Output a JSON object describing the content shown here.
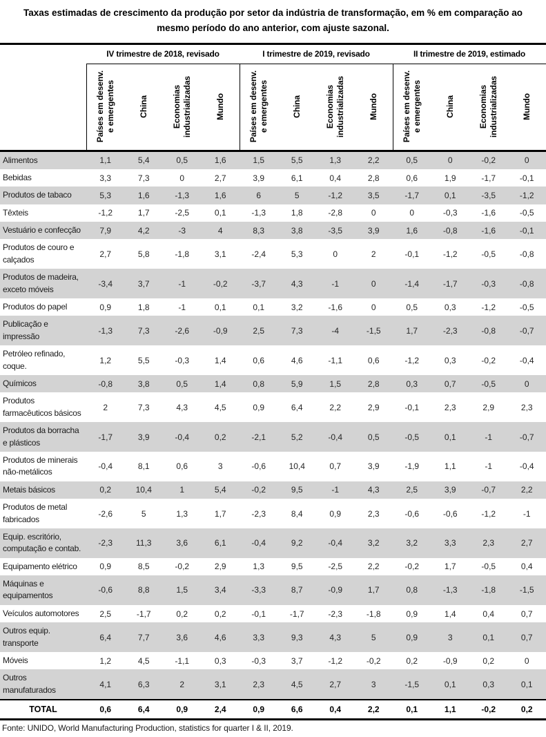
{
  "title": "Taxas estimadas de crescimento da produção por setor da indústria de transformação, em % em comparação ao mesmo período do ano anterior, com ajuste sazonal.",
  "footer": "Fonte: UNIDO, World Manufacturing Production, statistics for quarter I & II, 2019.",
  "colors": {
    "stripe_row": "#d3d3d3",
    "border": "#000000",
    "background": "#ffffff"
  },
  "chart_data": {
    "type": "table",
    "title": "Taxas estimadas de crescimento da produção por setor da indústria de transformação, em % em comparação ao mesmo período do ano anterior, com ajuste sazonal.",
    "groups": [
      {
        "label": "IV trimestre de 2018, revisado"
      },
      {
        "label": "I trimestre de 2019, revisado"
      },
      {
        "label": "II trimestre de 2019, estimado"
      }
    ],
    "subcolumns": [
      "Países em desenv.\ne emergentes",
      "China",
      "Economias\nindustrializadas",
      "Mundo"
    ],
    "rows": [
      {
        "label": "Alimentos",
        "values": [
          "1,1",
          "5,4",
          "0,5",
          "1,6",
          "1,5",
          "5,5",
          "1,3",
          "2,2",
          "0,5",
          "0",
          "-0,2",
          "0"
        ]
      },
      {
        "label": "Bebidas",
        "values": [
          "3,3",
          "7,3",
          "0",
          "2,7",
          "3,9",
          "6,1",
          "0,4",
          "2,8",
          "0,6",
          "1,9",
          "-1,7",
          "-0,1"
        ]
      },
      {
        "label": "Produtos de tabaco",
        "values": [
          "5,3",
          "1,6",
          "-1,3",
          "1,6",
          "6",
          "5",
          "-1,2",
          "3,5",
          "-1,7",
          "0,1",
          "-3,5",
          "-1,2"
        ]
      },
      {
        "label": "Têxteis",
        "values": [
          "-1,2",
          "1,7",
          "-2,5",
          "0,1",
          "-1,3",
          "1,8",
          "-2,8",
          "0",
          "0",
          "-0,3",
          "-1,6",
          "-0,5"
        ]
      },
      {
        "label": "Vestuário e confecção",
        "values": [
          "7,9",
          "4,2",
          "-3",
          "4",
          "8,3",
          "3,8",
          "-3,5",
          "3,9",
          "1,6",
          "-0,8",
          "-1,6",
          "-0,1"
        ]
      },
      {
        "label": "Produtos de couro e\ncalçados",
        "values": [
          "2,7",
          "5,8",
          "-1,8",
          "3,1",
          "-2,4",
          "5,3",
          "0",
          "2",
          "-0,1",
          "-1,2",
          "-0,5",
          "-0,8"
        ]
      },
      {
        "label": "Produtos de madeira,\nexceto móveis",
        "values": [
          "-3,4",
          "3,7",
          "-1",
          "-0,2",
          "-3,7",
          "4,3",
          "-1",
          "0",
          "-1,4",
          "-1,7",
          "-0,3",
          "-0,8"
        ]
      },
      {
        "label": "Produtos do papel",
        "values": [
          "0,9",
          "1,8",
          "-1",
          "0,1",
          "0,1",
          "3,2",
          "-1,6",
          "0",
          "0,5",
          "0,3",
          "-1,2",
          "-0,5"
        ]
      },
      {
        "label": "Publicação e\nimpressão",
        "values": [
          "-1,3",
          "7,3",
          "-2,6",
          "-0,9",
          "2,5",
          "7,3",
          "-4",
          "-1,5",
          "1,7",
          "-2,3",
          "-0,8",
          "-0,7"
        ]
      },
      {
        "label": "Petróleo refinado,\ncoque.",
        "values": [
          "1,2",
          "5,5",
          "-0,3",
          "1,4",
          "0,6",
          "4,6",
          "-1,1",
          "0,6",
          "-1,2",
          "0,3",
          "-0,2",
          "-0,4"
        ]
      },
      {
        "label": "Químicos",
        "values": [
          "-0,8",
          "3,8",
          "0,5",
          "1,4",
          "0,8",
          "5,9",
          "1,5",
          "2,8",
          "0,3",
          "0,7",
          "-0,5",
          "0"
        ]
      },
      {
        "label": "Produtos\nfarmacêuticos básicos",
        "values": [
          "2",
          "7,3",
          "4,3",
          "4,5",
          "0,9",
          "6,4",
          "2,2",
          "2,9",
          "-0,1",
          "2,3",
          "2,9",
          "2,3"
        ]
      },
      {
        "label": "Produtos da borracha\ne plásticos",
        "values": [
          "-1,7",
          "3,9",
          "-0,4",
          "0,2",
          "-2,1",
          "5,2",
          "-0,4",
          "0,5",
          "-0,5",
          "0,1",
          "-1",
          "-0,7"
        ]
      },
      {
        "label": "Produtos de minerais\nnão-metálicos",
        "values": [
          "-0,4",
          "8,1",
          "0,6",
          "3",
          "-0,6",
          "10,4",
          "0,7",
          "3,9",
          "-1,9",
          "1,1",
          "-1",
          "-0,4"
        ]
      },
      {
        "label": "Metais básicos",
        "values": [
          "0,2",
          "10,4",
          "1",
          "5,4",
          "-0,2",
          "9,5",
          "-1",
          "4,3",
          "2,5",
          "3,9",
          "-0,7",
          "2,2"
        ]
      },
      {
        "label": "Produtos de metal\nfabricados",
        "values": [
          "-2,6",
          "5",
          "1,3",
          "1,7",
          "-2,3",
          "8,4",
          "0,9",
          "2,3",
          "-0,6",
          "-0,6",
          "-1,2",
          "-1"
        ]
      },
      {
        "label": "Equip. escritório,\ncomputação e contab.",
        "values": [
          "-2,3",
          "11,3",
          "3,6",
          "6,1",
          "-0,4",
          "9,2",
          "-0,4",
          "3,2",
          "3,2",
          "3,3",
          "2,3",
          "2,7"
        ]
      },
      {
        "label": "Equipamento elétrico",
        "values": [
          "0,9",
          "8,5",
          "-0,2",
          "2,9",
          "1,3",
          "9,5",
          "-2,5",
          "2,2",
          "-0,2",
          "1,7",
          "-0,5",
          "0,4"
        ]
      },
      {
        "label": "Máquinas e\nequipamentos",
        "values": [
          "-0,6",
          "8,8",
          "1,5",
          "3,4",
          "-3,3",
          "8,7",
          "-0,9",
          "1,7",
          "0,8",
          "-1,3",
          "-1,8",
          "-1,5"
        ]
      },
      {
        "label": "Veículos automotores",
        "values": [
          "2,5",
          "-1,7",
          "0,2",
          "0,2",
          "-0,1",
          "-1,7",
          "-2,3",
          "-1,8",
          "0,9",
          "1,4",
          "0,4",
          "0,7"
        ]
      },
      {
        "label": "Outros equip.\ntransporte",
        "values": [
          "6,4",
          "7,7",
          "3,6",
          "4,6",
          "3,3",
          "9,3",
          "4,3",
          "5",
          "0,9",
          "3",
          "0,1",
          "0,7"
        ]
      },
      {
        "label": "Móveis",
        "values": [
          "1,2",
          "4,5",
          "-1,1",
          "0,3",
          "-0,3",
          "3,7",
          "-1,2",
          "-0,2",
          "0,2",
          "-0,9",
          "0,2",
          "0"
        ]
      },
      {
        "label": "Outros\nmanufaturados",
        "values": [
          "4,1",
          "6,3",
          "2",
          "3,1",
          "2,3",
          "4,5",
          "2,7",
          "3",
          "-1,5",
          "0,1",
          "0,3",
          "0,1"
        ]
      }
    ],
    "total": {
      "label": "TOTAL",
      "values": [
        "0,6",
        "6,4",
        "0,9",
        "2,4",
        "0,9",
        "6,6",
        "0,4",
        "2,2",
        "0,1",
        "1,1",
        "-0,2",
        "0,2"
      ]
    }
  }
}
